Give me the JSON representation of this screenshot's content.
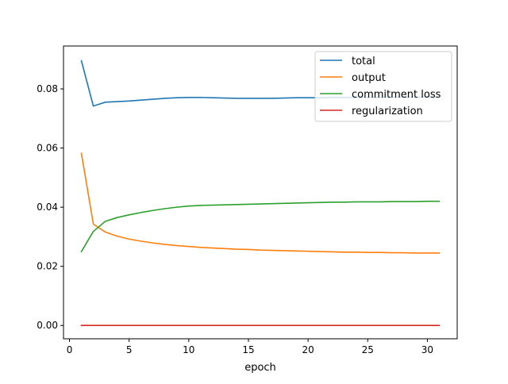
{
  "chart_data": {
    "type": "line",
    "title": "",
    "xlabel": "epoch",
    "ylabel": "",
    "xlim": [
      -0.5,
      32.5
    ],
    "ylim": [
      -0.0045,
      0.0945
    ],
    "xticks": [
      0,
      5,
      10,
      15,
      20,
      25,
      30
    ],
    "xtick_labels": [
      "0",
      "5",
      "10",
      "15",
      "20",
      "25",
      "30"
    ],
    "yticks": [
      0.0,
      0.02,
      0.04,
      0.06,
      0.08
    ],
    "ytick_labels": [
      "0.00",
      "0.02",
      "0.04",
      "0.06",
      "0.08"
    ],
    "grid": false,
    "legend_position": "top-right",
    "x": [
      1,
      2,
      3,
      4,
      5,
      6,
      7,
      8,
      9,
      10,
      11,
      12,
      13,
      14,
      15,
      16,
      17,
      18,
      19,
      20,
      21,
      22,
      23,
      24,
      25,
      26,
      27,
      28,
      29,
      30,
      31
    ],
    "series": [
      {
        "name": "total",
        "color": "#1f77b4",
        "values": [
          0.0895,
          0.0742,
          0.0755,
          0.0757,
          0.0759,
          0.0762,
          0.0765,
          0.0768,
          0.077,
          0.0771,
          0.0771,
          0.077,
          0.0769,
          0.0768,
          0.0768,
          0.0768,
          0.0768,
          0.0769,
          0.077,
          0.077,
          0.077,
          0.0771,
          0.0771,
          0.0771,
          0.0771,
          0.0771,
          0.0772,
          0.0772,
          0.0772,
          0.0772,
          0.0772
        ]
      },
      {
        "name": "output",
        "color": "#ff7f0e",
        "values": [
          0.0582,
          0.0343,
          0.0316,
          0.0302,
          0.0292,
          0.0285,
          0.0279,
          0.0274,
          0.027,
          0.0267,
          0.0264,
          0.0262,
          0.026,
          0.0258,
          0.0257,
          0.0255,
          0.0254,
          0.0253,
          0.0252,
          0.0251,
          0.025,
          0.0249,
          0.0248,
          0.0248,
          0.0247,
          0.0247,
          0.0246,
          0.0246,
          0.0245,
          0.0245,
          0.0245
        ]
      },
      {
        "name": "commitment loss",
        "color": "#2ca02c",
        "values": [
          0.025,
          0.0318,
          0.0352,
          0.0365,
          0.0374,
          0.0382,
          0.0389,
          0.0395,
          0.04,
          0.0404,
          0.0406,
          0.0407,
          0.0408,
          0.0409,
          0.041,
          0.0411,
          0.0412,
          0.0413,
          0.0414,
          0.0415,
          0.0416,
          0.0417,
          0.0417,
          0.0418,
          0.0418,
          0.0418,
          0.0419,
          0.0419,
          0.0419,
          0.042,
          0.042
        ]
      },
      {
        "name": "regularization",
        "color": "#d62728",
        "values": [
          0.0,
          0.0,
          0.0,
          0.0,
          0.0,
          0.0,
          0.0,
          0.0,
          0.0,
          0.0,
          0.0,
          0.0,
          0.0,
          0.0,
          0.0,
          0.0,
          0.0,
          0.0,
          0.0,
          0.0,
          0.0,
          0.0,
          0.0,
          0.0,
          0.0,
          0.0,
          0.0,
          0.0,
          0.0,
          0.0,
          0.0
        ]
      }
    ]
  }
}
